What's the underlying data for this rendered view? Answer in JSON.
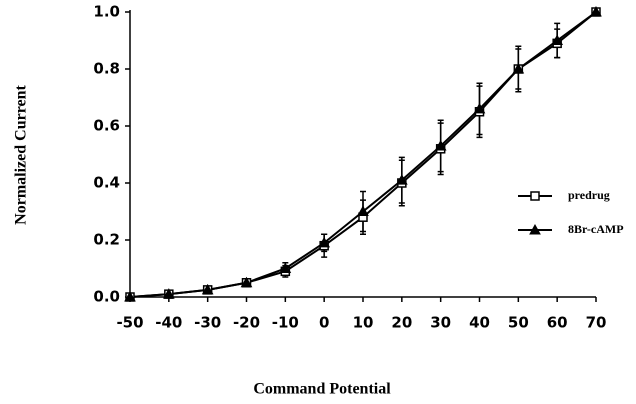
{
  "chart_data": {
    "type": "line",
    "xlabel": "Command Potential",
    "ylabel": "Normalized Current",
    "x": [
      -50,
      -40,
      -30,
      -20,
      -10,
      0,
      10,
      20,
      30,
      40,
      50,
      60,
      70
    ],
    "series": [
      {
        "name": "predrug",
        "color": "#000000",
        "marker": "square",
        "values": [
          0.0,
          0.01,
          0.025,
          0.05,
          0.09,
          0.18,
          0.28,
          0.4,
          0.52,
          0.65,
          0.8,
          0.89,
          1.0
        ],
        "errors": [
          0,
          0,
          0,
          0,
          0.02,
          0.04,
          0.06,
          0.08,
          0.09,
          0.09,
          0.07,
          0.05,
          0
        ]
      },
      {
        "name": "8Br-cAMP",
        "color": "#000000",
        "marker": "triangle",
        "values": [
          0.0,
          0.01,
          0.025,
          0.05,
          0.1,
          0.19,
          0.3,
          0.41,
          0.53,
          0.66,
          0.8,
          0.9,
          1.0
        ],
        "errors": [
          0,
          0,
          0,
          0,
          0.02,
          0.03,
          0.07,
          0.08,
          0.09,
          0.09,
          0.08,
          0.06,
          0
        ]
      }
    ],
    "xlim": [
      -50,
      70
    ],
    "xticks": [
      -50,
      -40,
      -30,
      -20,
      -10,
      0,
      10,
      20,
      30,
      40,
      50,
      60,
      70
    ],
    "ylim": [
      0,
      1
    ],
    "yticks": [
      {
        "value": 0,
        "label": "0.0"
      },
      {
        "value": 0.2,
        "label": "0.2"
      },
      {
        "value": 0.4,
        "label": "0.4"
      },
      {
        "value": 0.6,
        "label": "0.6"
      },
      {
        "value": 0.8,
        "label": "0.8"
      },
      {
        "value": 1,
        "label": "1.0"
      }
    ],
    "grid": false,
    "legend": "right"
  }
}
